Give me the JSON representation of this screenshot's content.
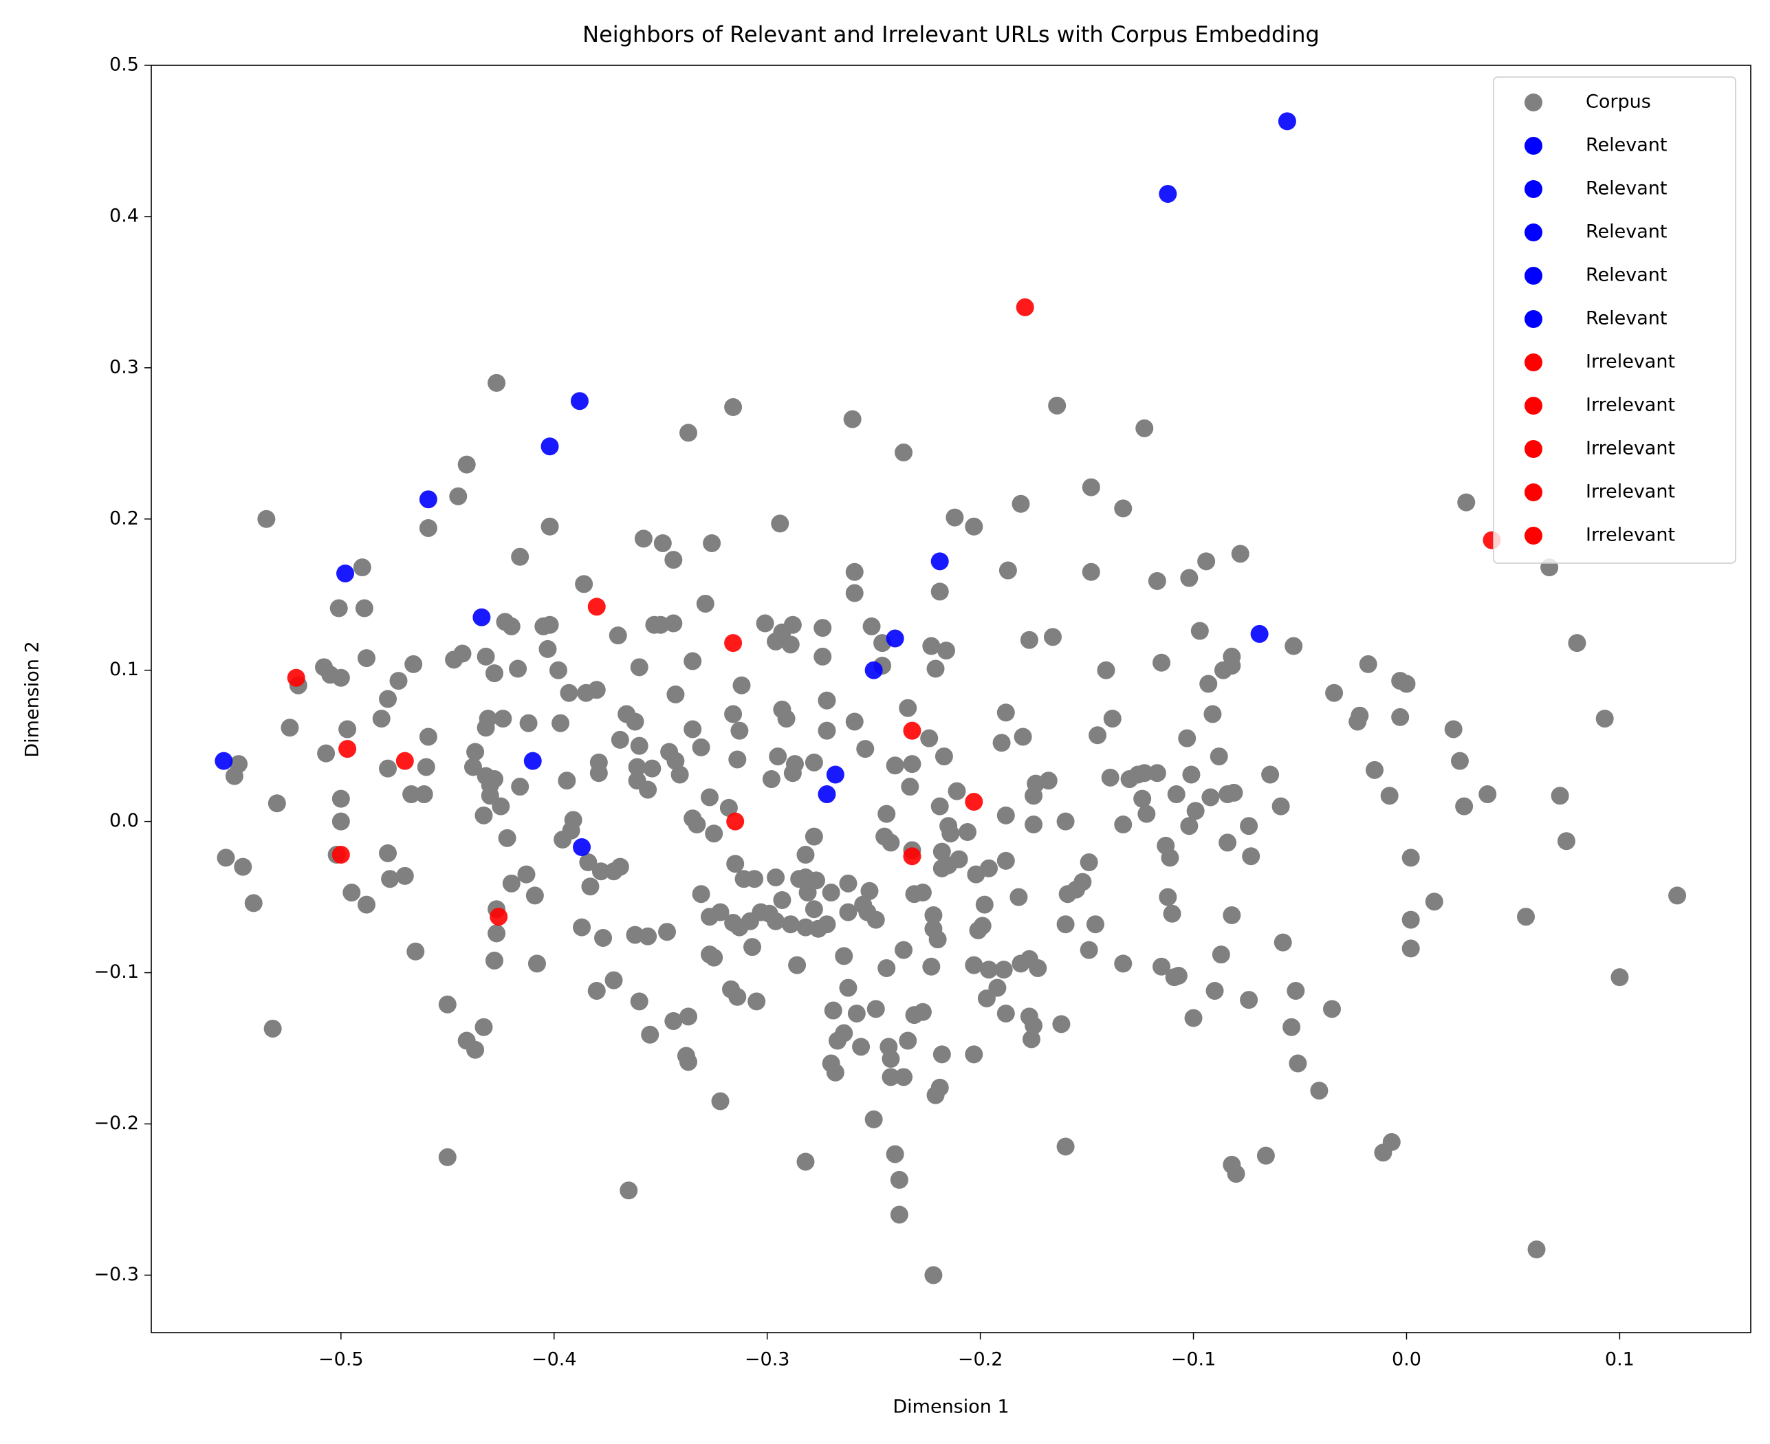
{
  "chart_data": {
    "type": "scatter",
    "title": "Neighbors of Relevant and Irrelevant URLs with Corpus Embedding",
    "x_label": "Dimension 1",
    "y_label": "Dimension 2",
    "xlim": [
      -0.589,
      0.1615
    ],
    "ylim": [
      -0.338,
      0.5
    ],
    "xticks": [
      {
        "value": -0.5,
        "label": "−0.5"
      },
      {
        "value": -0.4,
        "label": "−0.4"
      },
      {
        "value": -0.3,
        "label": "−0.3"
      },
      {
        "value": -0.2,
        "label": "−0.2"
      },
      {
        "value": -0.1,
        "label": "−0.1"
      },
      {
        "value": 0,
        "label": "0.0"
      },
      0.1
    ],
    "yticks": [
      {
        "value": -0.3,
        "label": "−0.3"
      },
      {
        "value": -0.2,
        "label": "−0.2"
      },
      {
        "value": -0.1,
        "label": "−0.1"
      },
      {
        "value": 0,
        "label": "0.0"
      },
      0.1,
      0.2,
      0.3,
      0.4,
      0.5
    ],
    "grid": false,
    "legend": "upper right",
    "series": [
      {
        "name": "Corpus",
        "color": "gray",
        "x": [
          -0.427,
          -0.316,
          -0.26,
          -0.337,
          -0.236,
          -0.164,
          -0.123,
          -0.441,
          -0.445,
          -0.148,
          -0.133,
          -0.181,
          -0.212,
          -0.203,
          -0.535,
          -0.459,
          -0.402,
          -0.294,
          -0.358,
          -0.349,
          -0.326,
          -0.078,
          -0.094,
          -0.344,
          -0.416,
          -0.49,
          0.067,
          0.028,
          -0.259,
          -0.148,
          -0.187,
          -0.102,
          -0.117,
          -0.386,
          -0.259,
          -0.219,
          -0.501,
          -0.489,
          -0.329,
          -0.423,
          -0.42,
          -0.402,
          -0.405,
          -0.344,
          -0.35,
          -0.353,
          -0.301,
          -0.293,
          -0.296,
          -0.288,
          -0.274,
          -0.251,
          -0.223,
          -0.216,
          -0.097,
          -0.053,
          -0.37,
          -0.289,
          -0.246,
          -0.166,
          -0.177,
          0.08,
          -0.403,
          -0.082,
          -0.115,
          -0.443,
          -0.447,
          -0.432,
          -0.488,
          -0.466,
          -0.335,
          -0.274,
          -0.246,
          -0.221,
          -0.018,
          -0.508,
          -0.505,
          -0.5,
          -0.428,
          -0.417,
          -0.398,
          -0.36,
          -0.086,
          -0.082,
          -0.141,
          -0.003,
          0,
          -0.093,
          -0.52,
          -0.312,
          -0.393,
          -0.385,
          -0.38,
          -0.343,
          -0.272,
          -0.234,
          -0.473,
          -0.478,
          -0.034,
          -0.497,
          -0.481,
          -0.431,
          -0.432,
          -0.424,
          -0.316,
          -0.366,
          -0.362,
          -0.335,
          -0.293,
          -0.291,
          -0.272,
          -0.259,
          -0.188,
          -0.138,
          -0.091,
          -0.022,
          -0.023,
          -0.003,
          0.093,
          0.022,
          -0.524,
          -0.459,
          -0.369,
          -0.36,
          -0.331,
          -0.313,
          -0.254,
          -0.224,
          -0.19,
          -0.18,
          -0.145,
          -0.103,
          -0.088,
          -0.507,
          -0.437,
          -0.438,
          -0.412,
          -0.397,
          -0.379,
          -0.361,
          -0.354,
          -0.346,
          -0.343,
          -0.314,
          -0.295,
          -0.287,
          -0.278,
          -0.24,
          -0.232,
          -0.217,
          0.025,
          -0.548,
          -0.478,
          -0.46,
          -0.55,
          -0.432,
          -0.43,
          -0.428,
          -0.416,
          -0.394,
          -0.379,
          -0.361,
          -0.356,
          -0.341,
          -0.298,
          -0.288,
          -0.233,
          -0.174,
          -0.168,
          -0.175,
          -0.139,
          -0.13,
          -0.126,
          -0.123,
          -0.117,
          -0.064,
          -0.101,
          -0.108,
          -0.084,
          -0.081,
          -0.092,
          0.072,
          0.038,
          -0.015,
          -0.008,
          0.027,
          -0.53,
          -0.5,
          -0.467,
          -0.461,
          -0.43,
          -0.425,
          -0.318,
          -0.327,
          -0.211,
          -0.188,
          -0.219,
          -0.244,
          -0.124,
          -0.122,
          -0.059,
          -0.099,
          -0.102,
          -0.5,
          -0.433,
          -0.335,
          -0.333,
          -0.391,
          -0.392,
          -0.325,
          -0.215,
          -0.214,
          -0.206,
          -0.175,
          -0.16,
          -0.133,
          -0.074,
          -0.422,
          -0.396,
          -0.278,
          -0.245,
          -0.242,
          -0.113,
          -0.111,
          -0.084,
          -0.073,
          0.075,
          0.002,
          -0.554,
          -0.546,
          -0.502,
          -0.478,
          -0.384,
          -0.378,
          -0.372,
          -0.369,
          -0.315,
          -0.282,
          -0.232,
          -0.218,
          -0.215,
          -0.21,
          -0.218,
          -0.202,
          -0.196,
          -0.188,
          -0.149,
          -0.413,
          -0.42,
          -0.477,
          -0.47,
          -0.495,
          -0.488,
          -0.541,
          -0.409,
          -0.383,
          -0.311,
          -0.306,
          -0.296,
          -0.285,
          -0.282,
          -0.277,
          -0.27,
          -0.262,
          -0.281,
          -0.293,
          -0.303,
          -0.299,
          -0.331,
          -0.322,
          -0.278,
          -0.262,
          -0.255,
          -0.252,
          -0.249,
          -0.231,
          -0.227,
          -0.222,
          -0.198,
          -0.182,
          -0.152,
          -0.155,
          -0.159,
          -0.112,
          -0.11,
          -0.082,
          0.013,
          0.056,
          0.127,
          -0.347,
          -0.362,
          -0.356,
          -0.387,
          -0.377,
          -0.427,
          -0.427,
          -0.327,
          -0.316,
          -0.313,
          -0.308,
          -0.296,
          -0.289,
          -0.282,
          -0.276,
          -0.272,
          -0.253,
          -0.222,
          -0.22,
          -0.199,
          -0.201,
          -0.16,
          -0.146,
          0.002,
          -0.058,
          -0.149,
          -0.133,
          -0.087,
          -0.428,
          -0.465,
          -0.408,
          -0.327,
          -0.325,
          -0.307,
          -0.286,
          -0.264,
          -0.236,
          -0.244,
          -0.223,
          -0.203,
          -0.196,
          -0.189,
          -0.181,
          -0.177,
          -0.173,
          -0.115,
          -0.107,
          -0.109,
          0.002,
          0.1,
          -0.372,
          -0.09,
          -0.052,
          -0.074,
          -0.38,
          -0.36,
          -0.317,
          -0.314,
          -0.305,
          -0.262,
          -0.258,
          -0.269,
          -0.249,
          -0.231,
          -0.227,
          -0.197,
          -0.192,
          -0.188,
          -0.177,
          -0.175,
          -0.176,
          -0.162,
          -0.1,
          -0.035,
          -0.054,
          -0.45,
          -0.532,
          -0.433,
          -0.441,
          -0.437,
          -0.344,
          -0.337,
          -0.355,
          -0.338,
          -0.337,
          -0.267,
          -0.264,
          -0.256,
          -0.27,
          -0.268,
          -0.243,
          -0.242,
          -0.234,
          -0.218,
          -0.203,
          -0.051,
          -0.242,
          -0.236,
          -0.221,
          -0.219,
          -0.322,
          -0.041,
          -0.25,
          -0.16,
          -0.24,
          -0.282,
          -0.238,
          -0.45,
          -0.011,
          -0.007,
          -0.082,
          -0.08,
          -0.066,
          -0.365,
          -0.238,
          0.061,
          -0.222
        ],
        "values": [
          0.29,
          0.274,
          0.266,
          0.257,
          0.244,
          0.275,
          0.26,
          0.236,
          0.215,
          0.221,
          0.207,
          0.21,
          0.201,
          0.195,
          0.2,
          0.194,
          0.195,
          0.197,
          0.187,
          0.184,
          0.184,
          0.177,
          0.172,
          0.173,
          0.175,
          0.168,
          0.168,
          0.211,
          0.165,
          0.165,
          0.166,
          0.161,
          0.159,
          0.157,
          0.151,
          0.152,
          0.141,
          0.141,
          0.144,
          0.132,
          0.129,
          0.13,
          0.129,
          0.131,
          0.13,
          0.13,
          0.131,
          0.125,
          0.119,
          0.13,
          0.128,
          0.129,
          0.116,
          0.113,
          0.126,
          0.116,
          0.123,
          0.117,
          0.118,
          0.122,
          0.12,
          0.118,
          0.114,
          0.109,
          0.105,
          0.111,
          0.107,
          0.109,
          0.108,
          0.104,
          0.106,
          0.109,
          0.103,
          0.101,
          0.104,
          0.102,
          0.097,
          0.095,
          0.098,
          0.101,
          0.1,
          0.102,
          0.1,
          0.103,
          0.1,
          0.093,
          0.091,
          0.091,
          0.09,
          0.09,
          0.085,
          0.085,
          0.087,
          0.084,
          0.08,
          0.075,
          0.093,
          0.081,
          0.085,
          0.061,
          0.068,
          0.068,
          0.062,
          0.068,
          0.071,
          0.071,
          0.066,
          0.061,
          0.074,
          0.068,
          0.06,
          0.066,
          0.072,
          0.068,
          0.071,
          0.07,
          0.066,
          0.069,
          0.068,
          0.061,
          0.062,
          0.056,
          0.054,
          0.05,
          0.049,
          0.06,
          0.048,
          0.055,
          0.052,
          0.056,
          0.057,
          0.055,
          0.043,
          0.045,
          0.046,
          0.036,
          0.065,
          0.065,
          0.039,
          0.036,
          0.035,
          0.046,
          0.04,
          0.041,
          0.043,
          0.038,
          0.039,
          0.037,
          0.038,
          0.043,
          0.04,
          0.038,
          0.035,
          0.036,
          0.03,
          0.03,
          0.024,
          0.028,
          0.023,
          0.027,
          0.032,
          0.027,
          0.021,
          0.031,
          0.028,
          0.032,
          0.023,
          0.025,
          0.027,
          0.017,
          0.029,
          0.028,
          0.031,
          0.032,
          0.032,
          0.031,
          0.031,
          0.018,
          0.018,
          0.019,
          0.016,
          0.017,
          0.018,
          0.034,
          0.017,
          0.01,
          0.012,
          0.015,
          0.018,
          0.018,
          0.017,
          0.01,
          0.009,
          0.016,
          0.02,
          0.004,
          0.01,
          0.005,
          0.015,
          0.005,
          0.01,
          0.007,
          -0.003,
          0,
          0.004,
          0.002,
          -0.002,
          0.001,
          -0.006,
          -0.008,
          -0.003,
          -0.008,
          -0.007,
          -0.002,
          0,
          -0.002,
          -0.003,
          -0.011,
          -0.012,
          -0.01,
          -0.01,
          -0.014,
          -0.016,
          -0.024,
          -0.014,
          -0.023,
          -0.013,
          -0.024,
          -0.024,
          -0.03,
          -0.022,
          -0.021,
          -0.027,
          -0.033,
          -0.033,
          -0.03,
          -0.028,
          -0.022,
          -0.019,
          -0.02,
          -0.029,
          -0.025,
          -0.031,
          -0.035,
          -0.031,
          -0.026,
          -0.027,
          -0.035,
          -0.041,
          -0.038,
          -0.036,
          -0.047,
          -0.055,
          -0.054,
          -0.049,
          -0.043,
          -0.038,
          -0.038,
          -0.037,
          -0.038,
          -0.037,
          -0.039,
          -0.047,
          -0.041,
          -0.047,
          -0.052,
          -0.06,
          -0.061,
          -0.048,
          -0.06,
          -0.058,
          -0.06,
          -0.055,
          -0.046,
          -0.065,
          -0.048,
          -0.047,
          -0.062,
          -0.055,
          -0.05,
          -0.04,
          -0.045,
          -0.048,
          -0.05,
          -0.061,
          -0.062,
          -0.053,
          -0.063,
          -0.049,
          -0.073,
          -0.075,
          -0.076,
          -0.07,
          -0.077,
          -0.058,
          -0.074,
          -0.063,
          -0.067,
          -0.07,
          -0.066,
          -0.066,
          -0.068,
          -0.07,
          -0.071,
          -0.068,
          -0.06,
          -0.071,
          -0.078,
          -0.069,
          -0.072,
          -0.068,
          -0.068,
          -0.065,
          -0.08,
          -0.085,
          -0.094,
          -0.088,
          -0.092,
          -0.086,
          -0.094,
          -0.088,
          -0.09,
          -0.083,
          -0.095,
          -0.089,
          -0.085,
          -0.097,
          -0.096,
          -0.095,
          -0.098,
          -0.098,
          -0.094,
          -0.091,
          -0.097,
          -0.096,
          -0.102,
          -0.103,
          -0.084,
          -0.103,
          -0.105,
          -0.112,
          -0.112,
          -0.118,
          -0.112,
          -0.119,
          -0.111,
          -0.116,
          -0.119,
          -0.11,
          -0.127,
          -0.125,
          -0.124,
          -0.128,
          -0.126,
          -0.117,
          -0.11,
          -0.127,
          -0.129,
          -0.135,
          -0.144,
          -0.134,
          -0.13,
          -0.124,
          -0.136,
          -0.121,
          -0.137,
          -0.136,
          -0.145,
          -0.151,
          -0.132,
          -0.129,
          -0.141,
          -0.155,
          -0.159,
          -0.145,
          -0.14,
          -0.149,
          -0.16,
          -0.166,
          -0.149,
          -0.157,
          -0.145,
          -0.154,
          -0.154,
          -0.16,
          -0.169,
          -0.169,
          -0.181,
          -0.176,
          -0.185,
          -0.178,
          -0.197,
          -0.215,
          -0.22,
          -0.225,
          -0.237,
          -0.222,
          -0.219,
          -0.212,
          -0.227,
          -0.233,
          -0.221,
          -0.244,
          -0.26,
          -0.283,
          -0.3
        ]
      },
      {
        "name": "Relevant",
        "color": "blue",
        "x": [
          -0.056,
          -0.388,
          -0.555
        ],
        "values": [
          0.463,
          0.278,
          0.04
        ]
      },
      {
        "name": "Relevant",
        "color": "blue",
        "x": [
          -0.112,
          -0.402,
          -0.41
        ],
        "values": [
          0.415,
          0.248,
          0.04
        ]
      },
      {
        "name": "Relevant",
        "color": "blue",
        "x": [
          -0.219,
          -0.459,
          -0.268
        ],
        "values": [
          0.172,
          0.213,
          0.031
        ]
      },
      {
        "name": "Relevant",
        "color": "blue",
        "x": [
          -0.069,
          -0.498,
          -0.272
        ],
        "values": [
          0.124,
          0.164,
          0.018
        ]
      },
      {
        "name": "Relevant",
        "color": "blue",
        "x": [
          -0.25,
          -0.434,
          -0.24,
          -0.387
        ],
        "values": [
          0.1,
          0.135,
          0.121,
          -0.017
        ]
      },
      {
        "name": "Irrelevant",
        "color": "red",
        "x": [
          -0.179,
          -0.521
        ],
        "values": [
          0.34,
          0.095
        ]
      },
      {
        "name": "Irrelevant",
        "color": "red",
        "x": [
          0.04,
          -0.232
        ],
        "values": [
          0.186,
          0.06
        ]
      },
      {
        "name": "Irrelevant",
        "color": "red",
        "x": [
          -0.38,
          -0.497
        ],
        "values": [
          0.142,
          0.048
        ]
      },
      {
        "name": "Irrelevant",
        "color": "red",
        "x": [
          -0.316,
          -0.5,
          -0.47
        ],
        "values": [
          0.118,
          -0.022,
          0.04
        ]
      },
      {
        "name": "Irrelevant",
        "color": "red",
        "x": [
          -0.203,
          -0.315,
          -0.426,
          -0.232
        ],
        "values": [
          0.013,
          0,
          -0.063,
          -0.023
        ]
      }
    ]
  }
}
